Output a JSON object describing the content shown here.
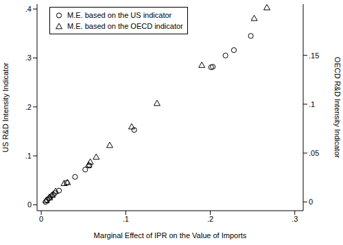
{
  "chart_data": {
    "type": "scatter",
    "x_label": "Marginal Effect of IPR on the Value of Imports",
    "y_label": "US R&D Intensity Indicator",
    "y2_label": "OECD R&D Intensity Indicator",
    "xlim": [
      -0.005,
      0.31
    ],
    "xticks": [
      0,
      {
        "value": 0.1,
        "label": ".1"
      },
      {
        "value": 0.2,
        "label": ".2"
      },
      {
        "value": 0.3,
        "label": ".3"
      }
    ],
    "ylim": [
      -0.012,
      0.41
    ],
    "yticks": [
      0,
      {
        "value": 0.1,
        "label": ".1"
      },
      {
        "value": 0.2,
        "label": ".2"
      },
      {
        "value": 0.3,
        "label": ".3"
      },
      {
        "value": 0.4,
        "label": ".4"
      }
    ],
    "y2lim": [
      -0.009,
      0.2025
    ],
    "y2ticks": [
      0,
      {
        "value": 0.05,
        "label": ".05"
      },
      {
        "value": 0.1,
        "label": ".1"
      },
      {
        "value": 0.15,
        "label": ".15"
      }
    ],
    "grid": false,
    "legend": "top-left",
    "series": [
      {
        "name": "M.E. based on the US indicator",
        "color": "#000000",
        "marker": "circle",
        "x": [
          0.248,
          0.228,
          0.218,
          0.203,
          0.201,
          0.11,
          0.057,
          0.052,
          0.04,
          0.03,
          0.021,
          0.016,
          0.014,
          0.011,
          0.009,
          0.007,
          0.005
        ],
        "values": [
          0.345,
          0.316,
          0.305,
          0.282,
          0.281,
          0.153,
          0.08,
          0.072,
          0.057,
          0.045,
          0.029,
          0.024,
          0.021,
          0.017,
          0.013,
          0.01,
          0.006
        ]
      },
      {
        "name": "M.E. based on the OECD indicator",
        "color": "#000000",
        "marker": "triangle",
        "axis": "y2",
        "x": [
          0.267,
          0.252,
          0.19,
          0.137,
          0.107,
          0.081,
          0.065,
          0.058,
          0.056,
          0.031,
          0.027,
          0.017,
          0.013,
          0.01,
          0.006
        ],
        "values": [
          0.199,
          0.188,
          0.14,
          0.101,
          0.077,
          0.058,
          0.046,
          0.041,
          0.038,
          0.02,
          0.019,
          0.011,
          0.007,
          0.0045,
          0.0014
        ]
      }
    ]
  }
}
